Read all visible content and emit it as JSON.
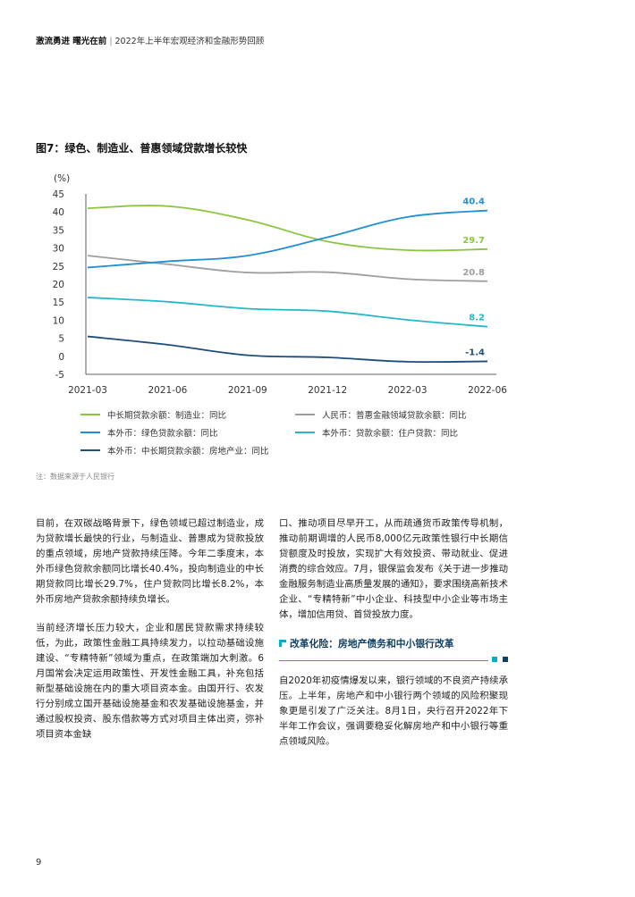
{
  "header": {
    "title": "激流勇进 曙光在前",
    "subtitle": "2022年上半年宏观经济和金融形势回顾"
  },
  "figure": {
    "title": "图7：绿色、制造业、普惠领域贷款增长较快",
    "note": "注：数据来源于人民银行"
  },
  "chart_data": {
    "type": "line",
    "ylabel": "(%)",
    "ylim": [
      -5,
      45
    ],
    "yticks": [
      45,
      40,
      35,
      30,
      25,
      20,
      15,
      10,
      5,
      0,
      -5
    ],
    "x": [
      "2021-03",
      "2021-06",
      "2021-09",
      "2021-12",
      "2022-03",
      "2022-06"
    ],
    "grid": false,
    "legend_position": "bottom",
    "series": [
      {
        "name": "中长期贷款余额：制造业：同比",
        "color": "#8cc63f",
        "values": [
          41.0,
          41.6,
          37.8,
          31.8,
          29.4,
          29.7
        ],
        "end_label": "29.7"
      },
      {
        "name": "人民币：普惠金融领域贷款余额：同比",
        "color": "#9e9e9e",
        "values": [
          27.9,
          25.5,
          23.2,
          23.3,
          21.4,
          20.8
        ],
        "end_label": "20.8"
      },
      {
        "name": "本外币：绿色贷款余额：同比",
        "color": "#1e90d6",
        "values": [
          24.6,
          26.3,
          27.9,
          33.0,
          38.6,
          40.4
        ],
        "end_label": "40.4"
      },
      {
        "name": "本外币：贷款余额：住户贷款：同比",
        "color": "#26b7c9",
        "values": [
          16.3,
          15.1,
          13.2,
          12.5,
          10.1,
          8.2
        ],
        "end_label": "8.2"
      },
      {
        "name": "本外币：中长期贷款余额：房地产业：同比",
        "color": "#1f4e79",
        "values": [
          5.5,
          3.2,
          0.3,
          -0.3,
          -1.5,
          -1.4
        ],
        "end_label": "-1.4"
      }
    ]
  },
  "body": {
    "left_p1": "目前，在双碳战略背景下，绿色领域已超过制造业，成为贷款增长最快的行业，与制造业、普惠成为贷款投放的重点领域，房地产贷款持续压降。今年二季度末，本外币绿色贷款余额同比增长40.4%，投向制造业的中长期贷款同比增长29.7%，住户贷款同比增长8.2%，本外币房地产贷款余额持续负增长。",
    "left_p2": "当前经济增长压力较大，企业和居民贷款需求持续较低，为此，政策性金融工具持续发力，以拉动基础设施建设、“专精特新”领域为重点，在政策端加大刺激。6月国常会决定运用政策性、开发性金融工具，补充包括新型基础设施在内的重大项目资本金。由国开行、农发行分别成立国开基础设施基金和农发基础设施基金，并通过股权投资、股东借款等方式对项目主体出资，弥补项目资本金缺",
    "right_p1": "口、推动项目尽早开工，从而疏通货币政策传导机制，推动前期调增的人民币8,000亿元政策性银行中长期信贷额度及时投放，实现扩大有效投资、带动就业、促进消费的综合效应。7月，银保监会发布《关于进一步推动金融服务制造业高质量发展的通知》，要求围绕高新技术企业、“专精特新”中小企业、科技型中小企业等市场主体，增加信用贷、首贷投放力度。",
    "section_title": "改革化险：房地产债务和中小银行改革",
    "right_p2": "自2020年初疫情爆发以来，银行领域的不良资产持续承压。上半年，房地产和中小银行两个领域的风险积聚现象更是引发了广泛关注。8月1日，央行召开2022年下半年工作会议，强调要稳妥化解房地产和中小银行等重点领域风险。"
  },
  "page_number": "9"
}
